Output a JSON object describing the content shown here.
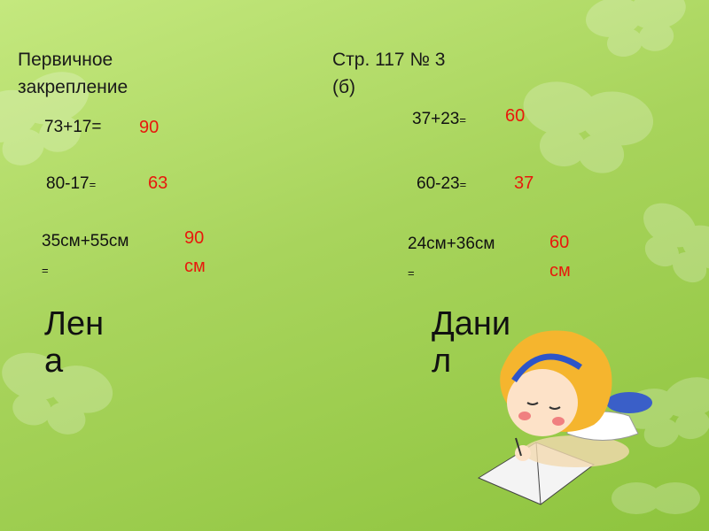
{
  "left": {
    "title_line1": "Первичное",
    "title_line2": "закрепление",
    "eq1": {
      "expr": "73+17=",
      "answer": "90"
    },
    "eq2": {
      "expr": "80-17",
      "eq": "=",
      "answer": "63"
    },
    "eq3": {
      "expr": "35см+55см",
      "eq": "=",
      "answer": "90см"
    },
    "name": "Лена"
  },
  "right": {
    "title_line1": "Стр. 117  № 3",
    "title_line2": "(б)",
    "eq1": {
      "expr": "37+23",
      "eq": "=",
      "answer": "60"
    },
    "eq2": {
      "expr": "60-23",
      "eq": "=",
      "answer": "37"
    },
    "eq3": {
      "expr": "24см+36см",
      "eq": "=",
      "answer": "60см"
    },
    "name": "Данил"
  },
  "colors": {
    "answer": "#e8180c",
    "background": "#a8d45c"
  },
  "icons": [
    "butterfly-decoration",
    "girl-writing-illustration"
  ]
}
